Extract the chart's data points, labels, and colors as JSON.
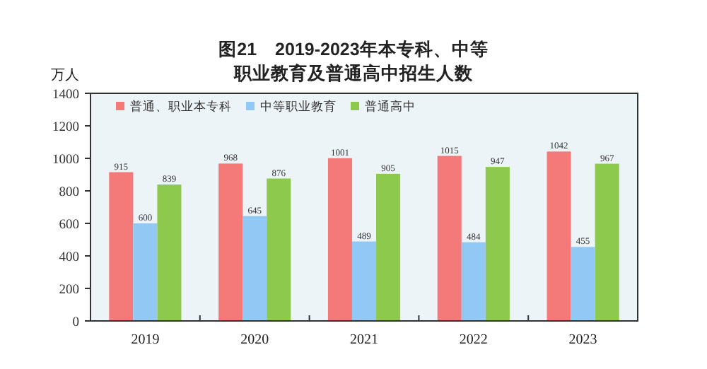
{
  "chart_data": {
    "type": "bar",
    "title": "图21　2019-2023年本专科、中等职业教育及普通高中招生人数",
    "ylabel": "万人",
    "categories": [
      "2019",
      "2020",
      "2021",
      "2022",
      "2023"
    ],
    "series": [
      {
        "name": "普通、职业本专科",
        "color": "#f47a7a",
        "values": [
          915,
          968,
          1001,
          1015,
          1042
        ]
      },
      {
        "name": "中等职业教育",
        "color": "#92c9f4",
        "values": [
          600,
          645,
          489,
          484,
          455
        ]
      },
      {
        "name": "普通高中",
        "color": "#8cc94c",
        "values": [
          839,
          876,
          905,
          947,
          967
        ]
      }
    ],
    "ylim": [
      0,
      1400
    ],
    "yticks": [
      0,
      200,
      400,
      600,
      800,
      1000,
      1200,
      1400
    ],
    "legend": "top left",
    "data_labels": true,
    "grid": false
  }
}
